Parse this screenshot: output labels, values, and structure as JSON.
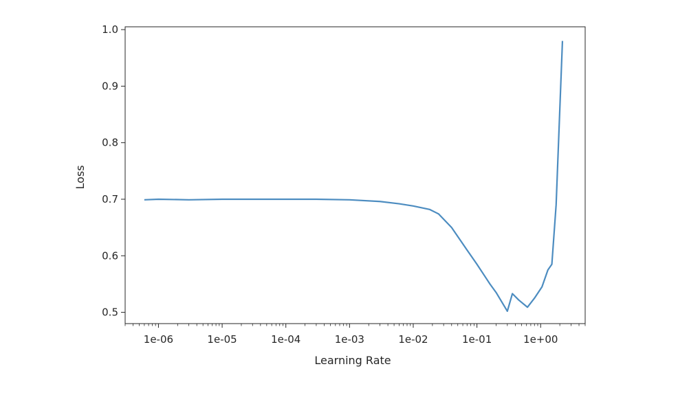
{
  "chart_data": {
    "type": "line",
    "title": "",
    "xlabel": "Learning Rate",
    "ylabel": "Loss",
    "xscale": "log",
    "xlim": [
      3e-07,
      5.0
    ],
    "ylim": [
      0.48,
      1.005
    ],
    "grid": false,
    "line_color": "#4c8cc0",
    "xticks": [
      {
        "value": 1e-06,
        "label": "1e-06"
      },
      {
        "value": 1e-05,
        "label": "1e-05"
      },
      {
        "value": 0.0001,
        "label": "1e-04"
      },
      {
        "value": 0.001,
        "label": "1e-03"
      },
      {
        "value": 0.01,
        "label": "1e-02"
      },
      {
        "value": 0.1,
        "label": "1e-01"
      },
      {
        "value": 1,
        "label": "1e+00"
      }
    ],
    "yticks": [
      {
        "value": 0.5,
        "label": "0.5"
      },
      {
        "value": 0.6,
        "label": "0.6"
      },
      {
        "value": 0.7,
        "label": "0.7"
      },
      {
        "value": 0.8,
        "label": "0.8"
      },
      {
        "value": 0.9,
        "label": "0.9"
      },
      {
        "value": 1.0,
        "label": "1.0"
      }
    ],
    "series": [
      {
        "x": [
          6e-07,
          1e-06,
          3e-06,
          1e-05,
          3e-05,
          0.0001,
          0.0003,
          0.001,
          0.003,
          0.006,
          0.01,
          0.018,
          0.025,
          0.04,
          0.07,
          0.1,
          0.14,
          0.16,
          0.2,
          0.3,
          0.36,
          0.45,
          0.62,
          0.8,
          1.05,
          1.3,
          1.5,
          1.75,
          2.2
        ],
        "y": [
          0.699,
          0.7,
          0.699,
          0.7,
          0.7,
          0.7,
          0.7,
          0.699,
          0.696,
          0.692,
          0.688,
          0.682,
          0.674,
          0.65,
          0.61,
          0.585,
          0.56,
          0.55,
          0.535,
          0.502,
          0.533,
          0.522,
          0.509,
          0.525,
          0.545,
          0.575,
          0.585,
          0.69,
          0.98
        ]
      }
    ]
  }
}
